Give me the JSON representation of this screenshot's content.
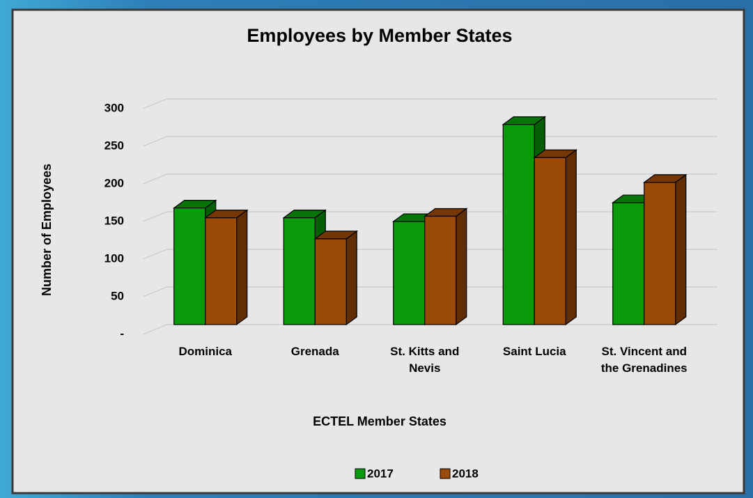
{
  "chart_data": {
    "type": "bar3d",
    "title": "Employees by Member States",
    "x_label": "ECTEL Member States",
    "y_label": "Number of Employees",
    "categories": [
      "Dominica",
      "Grenada",
      "St. Kitts and Nevis",
      "Saint Lucia",
      "St. Vincent and the Grenadines"
    ],
    "series": [
      {
        "name": "2017",
        "color": "#0b9a0b",
        "values": [
          155,
          142,
          137,
          266,
          162
        ]
      },
      {
        "name": "2018",
        "color": "#9c4a08",
        "values": [
          142,
          114,
          144,
          222,
          189
        ]
      }
    ],
    "ylim": [
      0,
      300
    ],
    "yticks": [
      {
        "value": 0,
        "label": "-"
      },
      50,
      100,
      150,
      200,
      250,
      300
    ],
    "grid": true,
    "legend": "bottom"
  }
}
